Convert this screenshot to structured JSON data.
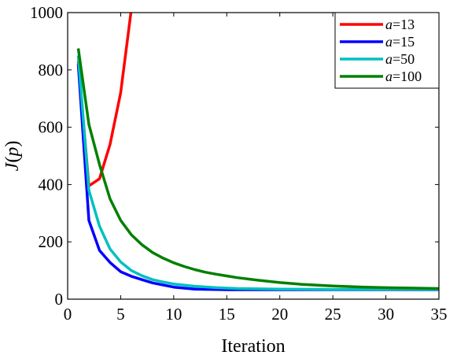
{
  "chart_data": {
    "type": "line",
    "xlabel": "Iteration",
    "ylabel": {
      "prefix": "J",
      "paren_open": "(",
      "var": "p",
      "paren_close": ")"
    },
    "xlim": [
      0,
      35
    ],
    "ylim": [
      0,
      1000
    ],
    "xticks": [
      "0",
      "5",
      "10",
      "15",
      "20",
      "25",
      "30",
      "35"
    ],
    "yticks": [
      "0",
      "200",
      "400",
      "600",
      "800",
      "1000"
    ],
    "grid": false,
    "legend_position": "top-right",
    "series": [
      {
        "name": {
          "var": "a",
          "value": "=13"
        },
        "color": "#ff0000",
        "x": [
          1,
          2,
          3,
          4,
          5,
          6
        ],
        "y": [
          830,
          395,
          420,
          540,
          720,
          1010
        ]
      },
      {
        "name": {
          "var": "a",
          "value": "=15"
        },
        "color": "#0000ff",
        "x": [
          1,
          2,
          3,
          4,
          5,
          6,
          7,
          8,
          10,
          12,
          15,
          20,
          25,
          30,
          35
        ],
        "y": [
          820,
          275,
          170,
          128,
          96,
          80,
          68,
          57,
          42,
          35,
          33,
          33,
          33,
          33,
          33
        ]
      },
      {
        "name": {
          "var": "a",
          "value": "=50"
        },
        "color": "#00c0c0",
        "x": [
          1,
          2,
          3,
          4,
          5,
          6,
          7,
          8,
          9,
          10,
          12,
          14,
          16,
          18,
          20,
          25,
          30,
          35
        ],
        "y": [
          850,
          380,
          255,
          175,
          130,
          100,
          82,
          68,
          60,
          53,
          45,
          40,
          37,
          36,
          35,
          34,
          34,
          34
        ]
      },
      {
        "name": {
          "var": "a",
          "value": "=100"
        },
        "color": "#008000",
        "x": [
          1,
          2,
          3,
          4,
          5,
          6,
          7,
          8,
          9,
          10,
          11,
          12,
          13,
          14,
          15,
          16,
          18,
          20,
          22,
          25,
          28,
          30,
          35
        ],
        "y": [
          875,
          610,
          470,
          350,
          275,
          225,
          190,
          163,
          143,
          127,
          114,
          103,
          94,
          87,
          81,
          75,
          66,
          58,
          52,
          46,
          42,
          40,
          37
        ]
      }
    ]
  }
}
